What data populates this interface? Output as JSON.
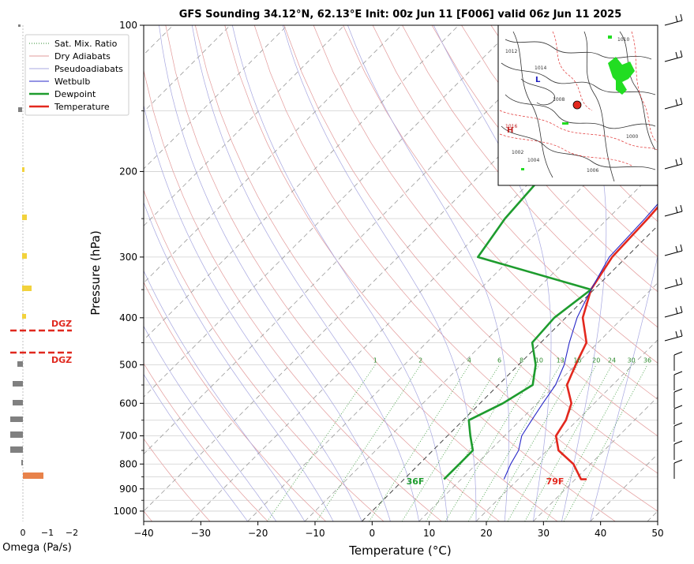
{
  "chart_data": {
    "type": "skew-t sounding",
    "title": "GFS Sounding 34.12°N, 62.13°E Init: 00z Jun 11 [F006] valid 06z Jun 11 2025",
    "xlabel": "Temperature (°C)",
    "ylabel": "Pressure (hPa)",
    "xlim": [
      -40,
      50
    ],
    "ylim": [
      1050,
      100
    ],
    "x_ticks": [
      -40,
      -30,
      -20,
      -10,
      0,
      10,
      20,
      30,
      40,
      50
    ],
    "y_ticks": [
      100,
      200,
      300,
      400,
      500,
      600,
      700,
      800,
      900,
      1000
    ],
    "y_scale": "log",
    "grid": true,
    "legend": {
      "position": "top-left",
      "entries": [
        "Sat. Mix. Ratio",
        "Dry Adiabats",
        "Pseudoadiabats",
        "Wetbulb",
        "Dewpoint",
        "Temperature"
      ]
    },
    "mixing_ratio_labels": [
      "1",
      "2",
      "4",
      "6",
      "8",
      "10",
      "13",
      "16",
      "20",
      "24",
      "30",
      "36"
    ],
    "series": [
      {
        "name": "Temperature",
        "color": "#e3281e",
        "points": [
          [
            -4.5,
            100
          ],
          [
            -5.5,
            125
          ],
          [
            -6,
            150
          ],
          [
            -4,
            200
          ],
          [
            -3,
            250
          ],
          [
            -2.5,
            300
          ],
          [
            -0.5,
            350
          ],
          [
            3,
            400
          ],
          [
            8,
            450
          ],
          [
            10,
            500
          ],
          [
            12,
            550
          ],
          [
            16,
            600
          ],
          [
            18,
            650
          ],
          [
            19,
            700
          ],
          [
            22,
            750
          ],
          [
            27,
            800
          ],
          [
            31,
            860
          ],
          [
            32,
            860
          ]
        ]
      },
      {
        "name": "Dewpoint",
        "color": "#1e9c2e",
        "points": [
          [
            -21,
            100
          ],
          [
            -25,
            125
          ],
          [
            -27,
            150
          ],
          [
            -29,
            200
          ],
          [
            -28,
            250
          ],
          [
            -26,
            300
          ],
          [
            -0.5,
            350
          ],
          [
            -2,
            400
          ],
          [
            -1.5,
            450
          ],
          [
            3,
            500
          ],
          [
            6,
            550
          ],
          [
            4,
            600
          ],
          [
            1,
            650
          ],
          [
            4,
            700
          ],
          [
            7,
            750
          ],
          [
            7,
            800
          ],
          [
            7,
            860
          ]
        ]
      },
      {
        "name": "Wetbulb",
        "color": "#2828c8",
        "points": [
          [
            -4.5,
            100
          ],
          [
            -5.5,
            125
          ],
          [
            -6,
            150
          ],
          [
            -4.5,
            200
          ],
          [
            -3.5,
            250
          ],
          [
            -3,
            300
          ],
          [
            -0.5,
            350
          ],
          [
            2,
            400
          ],
          [
            5,
            450
          ],
          [
            8,
            500
          ],
          [
            10,
            550
          ],
          [
            11,
            600
          ],
          [
            12,
            650
          ],
          [
            13,
            700
          ],
          [
            15,
            750
          ],
          [
            16,
            800
          ],
          [
            17.5,
            860
          ]
        ]
      }
    ],
    "surface_labels": {
      "temperature": "79F",
      "dewpoint": "36F"
    },
    "omega": {
      "xlabel": "Omega (Pa/s)",
      "x_ticks": [
        "0",
        "−1",
        "−2"
      ],
      "dgz_label": "DGZ"
    },
    "inset_map": {
      "contour_labels": [
        "1012",
        "1010",
        "1008",
        "1006",
        "1004",
        "1002",
        "1000",
        "1014",
        "1016"
      ]
    }
  }
}
